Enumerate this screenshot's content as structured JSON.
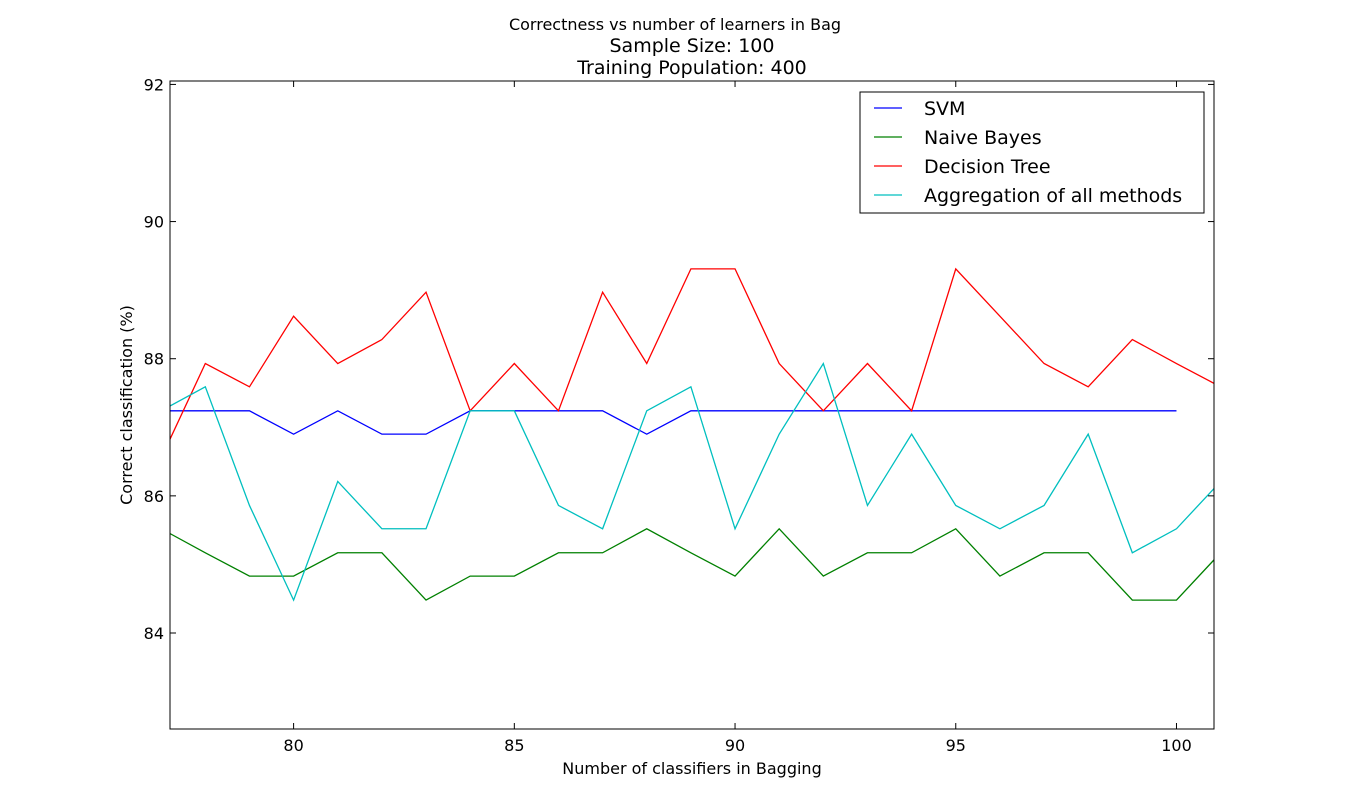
{
  "chart_data": {
    "type": "line",
    "title": "Correctness vs number of learners in Bag",
    "subtitle": [
      "Sample Size: 100",
      "Training Population: 400"
    ],
    "xlabel": "Number of classifiers in Bagging",
    "ylabel": "Correct classification (%)",
    "xlim": [
      77.2,
      100.85
    ],
    "ylim": [
      82.6,
      92.05
    ],
    "xticks": [
      80,
      85,
      90,
      95,
      100
    ],
    "yticks": [
      84,
      86,
      88,
      90,
      92
    ],
    "grid": false,
    "legend_position": "top-right",
    "x": [
      77,
      78,
      79,
      80,
      81,
      82,
      83,
      84,
      85,
      86,
      87,
      88,
      89,
      90,
      91,
      92,
      93,
      94,
      95,
      96,
      97,
      98,
      99,
      100,
      101
    ],
    "series": [
      {
        "name": "SVM",
        "color": "#0000ff",
        "values": [
          87.24,
          87.24,
          87.24,
          86.9,
          87.24,
          86.9,
          86.9,
          87.24,
          87.24,
          87.24,
          87.24,
          86.9,
          87.24,
          87.24,
          87.24,
          87.24,
          87.24,
          87.24,
          87.24,
          87.24,
          87.24,
          87.24,
          87.24,
          87.24,
          null
        ]
      },
      {
        "name": "Naive Bayes",
        "color": "#008000",
        "values": [
          85.52,
          85.17,
          84.83,
          84.83,
          85.17,
          85.17,
          84.48,
          84.83,
          84.83,
          85.17,
          85.17,
          85.52,
          85.17,
          84.83,
          85.52,
          84.83,
          85.17,
          85.17,
          85.52,
          84.83,
          85.17,
          85.17,
          84.48,
          84.48,
          85.17
        ]
      },
      {
        "name": "Decision Tree",
        "color": "#ff0000",
        "values": [
          86.55,
          87.93,
          87.59,
          88.62,
          87.93,
          88.28,
          88.97,
          87.24,
          87.93,
          87.24,
          88.97,
          87.93,
          89.31,
          89.31,
          87.93,
          87.24,
          87.93,
          87.24,
          89.31,
          88.62,
          87.93,
          87.59,
          88.28,
          87.93,
          87.59
        ]
      },
      {
        "name": "Aggregation of all methods",
        "color": "#00bfbf",
        "values": [
          87.24,
          87.59,
          85.86,
          84.48,
          86.21,
          85.52,
          85.52,
          87.24,
          87.24,
          85.86,
          85.52,
          87.24,
          87.59,
          85.52,
          86.9,
          87.93,
          85.86,
          86.9,
          85.86,
          85.52,
          85.86,
          86.9,
          85.17,
          85.52,
          86.21
        ]
      }
    ]
  }
}
